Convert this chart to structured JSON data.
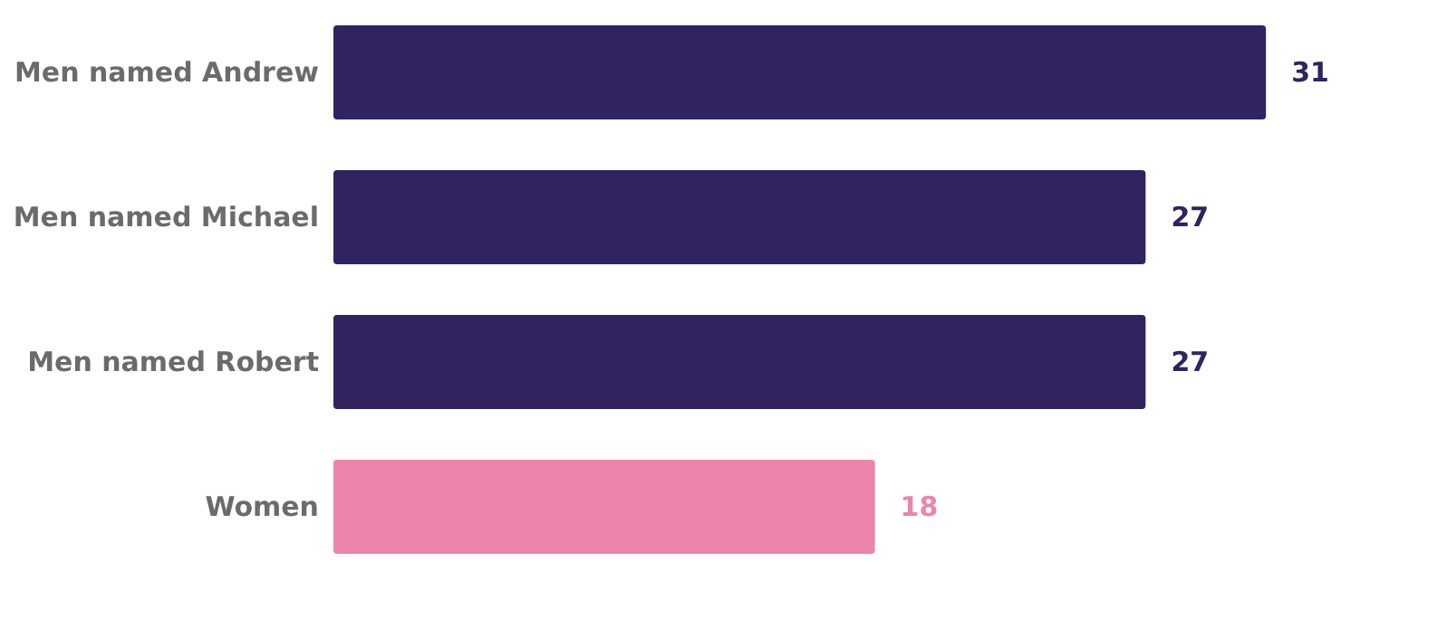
{
  "chart_data": {
    "type": "bar",
    "orientation": "horizontal",
    "categories": [
      "Men named Andrew",
      "Men named Michael",
      "Men named Robert",
      "Women"
    ],
    "values": [
      31,
      27,
      27,
      18
    ],
    "colors": [
      "#312360",
      "#312360",
      "#312360",
      "#ec84ab"
    ],
    "data_labels": true,
    "grid": false,
    "tick_labels": "y"
  }
}
